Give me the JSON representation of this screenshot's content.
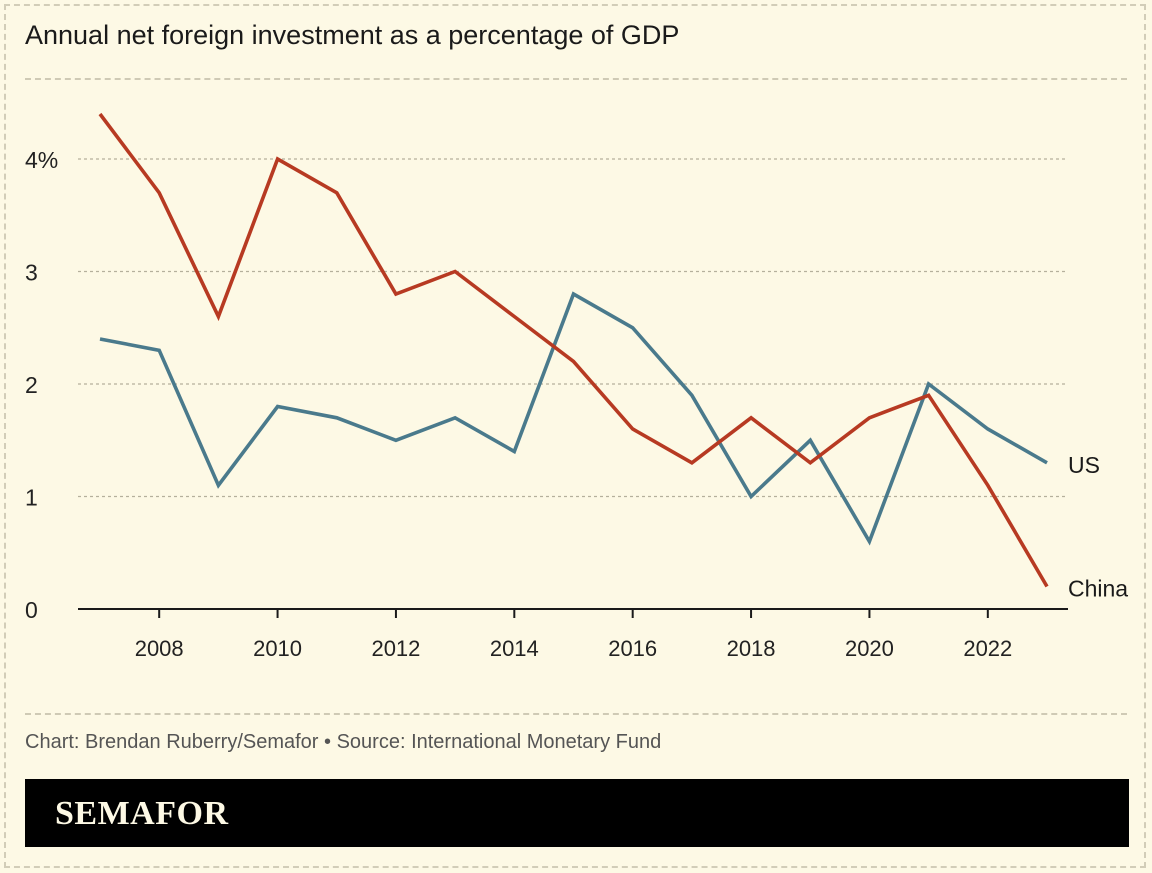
{
  "title": "Annual net foreign investment as a percentage of GDP",
  "credit": "Chart: Brendan Ruberry/Semafor • Source: International Monetary Fund",
  "brand": "SEMAFOR",
  "colors": {
    "us": "#4a7a8c",
    "china": "#b73a22",
    "background": "#fdf9e5",
    "grid": "#b5b09c"
  },
  "chart_data": {
    "type": "line",
    "title": "Annual net foreign investment as a percentage of GDP",
    "xlabel": "",
    "ylabel": "",
    "x": [
      2007,
      2008,
      2009,
      2010,
      2011,
      2012,
      2013,
      2014,
      2015,
      2016,
      2017,
      2018,
      2019,
      2020,
      2021,
      2022,
      2023
    ],
    "xlim": [
      2007,
      2023
    ],
    "ylim": [
      0,
      4.5
    ],
    "x_ticks": [
      2008,
      2010,
      2012,
      2014,
      2016,
      2018,
      2020,
      2022
    ],
    "y_ticks": [
      0,
      1,
      2,
      3,
      4
    ],
    "y_tick_labels": [
      "0",
      "1",
      "2",
      "3",
      "4%"
    ],
    "grid": true,
    "legend": "direct labels at line ends",
    "series": [
      {
        "name": "US",
        "values": [
          2.4,
          2.3,
          1.1,
          1.8,
          1.7,
          1.5,
          1.7,
          1.4,
          2.8,
          2.5,
          1.9,
          1.0,
          1.5,
          0.6,
          2.0,
          1.6,
          1.3
        ]
      },
      {
        "name": "China",
        "values": [
          4.4,
          3.7,
          2.6,
          4.0,
          3.7,
          2.8,
          3.0,
          2.6,
          2.2,
          1.6,
          1.3,
          1.7,
          1.3,
          1.7,
          1.9,
          1.1,
          0.2
        ]
      }
    ]
  }
}
